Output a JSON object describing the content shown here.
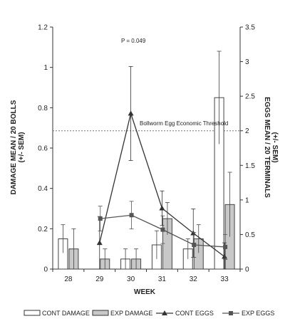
{
  "chart_data": {
    "type": "bar+line",
    "annotation": "P = 0.049",
    "threshold": {
      "label": "Bollworm Egg Economic Threshold",
      "axis": "right",
      "value": 2.0
    },
    "xlabel": "WEEK",
    "categories": [
      "28",
      "29",
      "30",
      "31",
      "32",
      "33"
    ],
    "y_left": {
      "label_line1": "DAMAGE MEAN / 20 BOLLS",
      "label_line2": "(+/- SEM)",
      "range": [
        0,
        1.2
      ],
      "ticks": [
        "0",
        "0.2",
        "0.4",
        "0.6",
        "0.8",
        "1",
        "1.2"
      ]
    },
    "y_right": {
      "label_line1": "EGGS MEAN / 20 TERMINALS",
      "label_line2": "(+/- SEM)",
      "range": [
        0,
        3.5
      ],
      "ticks": [
        "0",
        "0.5",
        "1",
        "1.5",
        "2",
        "2.5",
        "3",
        "3.5"
      ]
    },
    "bar_series": [
      {
        "name": "CONT DAMAGE",
        "axis": "left",
        "color": "#ffffff",
        "values": [
          0.15,
          0.0,
          0.05,
          0.12,
          0.1,
          0.85
        ],
        "errors": [
          0.07,
          0.0,
          0.05,
          0.07,
          0.05,
          0.23
        ]
      },
      {
        "name": "EXP DAMAGE",
        "axis": "left",
        "color": "#c8c8c8",
        "values": [
          0.1,
          0.05,
          0.05,
          0.25,
          0.15,
          0.32
        ],
        "errors": [
          0.1,
          0.05,
          0.05,
          0.08,
          0.07,
          0.16
        ]
      }
    ],
    "line_series": [
      {
        "name": "CONT EGGS",
        "axis": "right",
        "marker": "triangle",
        "values": [
          null,
          0.38,
          2.25,
          0.88,
          0.52,
          0.18
        ],
        "errors": [
          null,
          0.38,
          0.68,
          0.25,
          0.35,
          0.2
        ]
      },
      {
        "name": "EXP EGGS",
        "axis": "right",
        "marker": "square",
        "values": [
          null,
          0.73,
          0.78,
          0.57,
          0.35,
          0.32
        ],
        "errors": [
          null,
          0.18,
          0.2,
          0.2,
          0.18,
          0.18
        ]
      }
    ]
  }
}
